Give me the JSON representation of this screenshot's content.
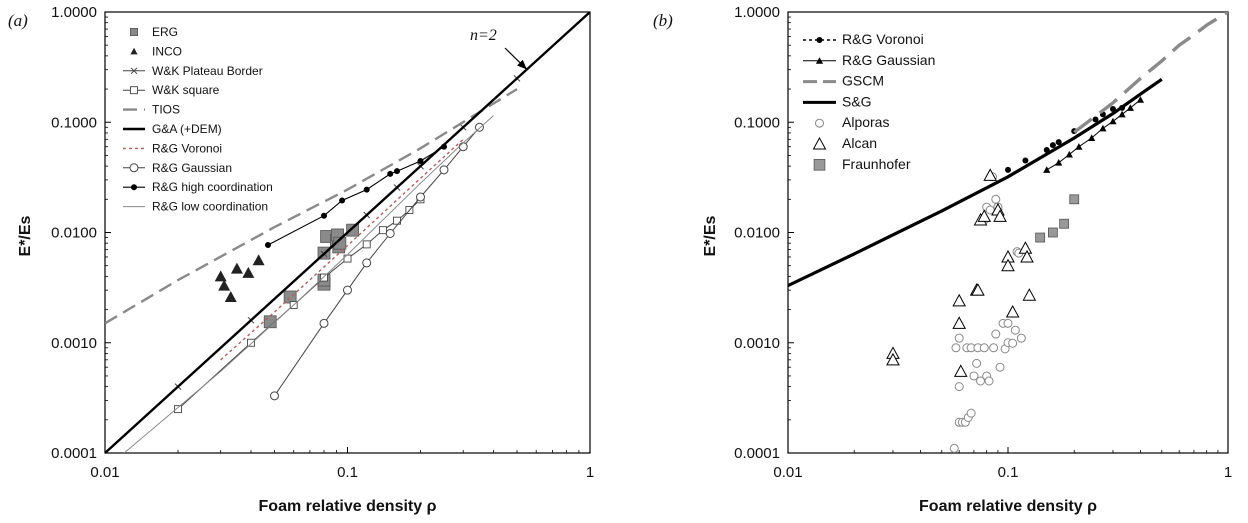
{
  "chart_data": [
    {
      "type": "line",
      "panel_label": "(a)",
      "xlabel": "Foam relative density ρ",
      "ylabel": "E*/Es",
      "xscale": "log",
      "yscale": "log",
      "xlim": [
        0.01,
        1
      ],
      "ylim": [
        0.0001,
        1
      ],
      "xticks": [
        "0.01",
        "0.1",
        "1"
      ],
      "yticks": [
        "0.0001",
        "0.0010",
        "0.0100",
        "0.1000",
        "1.0000"
      ],
      "legend_position": "top-left",
      "annotation": {
        "text": "n=2",
        "points_to": [
          0.55,
          0.3
        ]
      },
      "series": [
        {
          "name": "ERG",
          "marker": "square",
          "color": "#8a8a8a",
          "points": [
            [
              0.048,
              0.00155
            ],
            [
              0.058,
              0.0026
            ],
            [
              0.08,
              0.0034
            ],
            [
              0.08,
              0.0037
            ],
            [
              0.08,
              0.0065
            ],
            [
              0.082,
              0.0092
            ],
            [
              0.09,
              0.0085
            ],
            [
              0.091,
              0.0095
            ],
            [
              0.092,
              0.0074
            ],
            [
              0.093,
              0.008
            ],
            [
              0.105,
              0.0105
            ]
          ]
        },
        {
          "name": "INCO",
          "marker": "triangle",
          "color": "#222222",
          "points": [
            [
              0.03,
              0.004
            ],
            [
              0.031,
              0.0033
            ],
            [
              0.033,
              0.0026
            ],
            [
              0.035,
              0.0047
            ],
            [
              0.039,
              0.0043
            ],
            [
              0.043,
              0.0056
            ]
          ]
        },
        {
          "name": "W&K Plateau Border",
          "marker": "x",
          "color": "#444444",
          "points": [
            [
              0.02,
              0.0004
            ],
            [
              0.04,
              0.0016
            ],
            [
              0.08,
              0.0064
            ],
            [
              0.12,
              0.0144
            ],
            [
              0.16,
              0.0256
            ],
            [
              0.2,
              0.04
            ],
            [
              0.3,
              0.09
            ],
            [
              0.5,
              0.25
            ]
          ]
        },
        {
          "name": "W&K square",
          "marker": "open-square",
          "color": "#444444",
          "points": [
            [
              0.02,
              0.00025
            ],
            [
              0.04,
              0.001
            ],
            [
              0.06,
              0.0022
            ],
            [
              0.08,
              0.0039
            ],
            [
              0.1,
              0.0058
            ],
            [
              0.12,
              0.0078
            ],
            [
              0.14,
              0.0105
            ],
            [
              0.16,
              0.0128
            ],
            [
              0.18,
              0.016
            ],
            [
              0.2,
              0.02
            ]
          ]
        },
        {
          "name": "TIOS",
          "marker": "none",
          "color": "#8a8a8a",
          "points": [
            [
              0.01,
              0.0015
            ],
            [
              0.02,
              0.0037
            ],
            [
              0.05,
              0.0112
            ],
            [
              0.1,
              0.0245
            ],
            [
              0.2,
              0.058
            ],
            [
              0.5,
              0.2
            ]
          ]
        },
        {
          "name": "G&A (+DEM)",
          "marker": "none",
          "color": "#000000",
          "points": [
            [
              0.01,
              0.0001
            ],
            [
              1,
              1
            ]
          ]
        },
        {
          "name": "R&G Voronoi",
          "marker": "none",
          "color": "#b06060",
          "points": [
            [
              0.03,
              0.0007
            ],
            [
              0.05,
              0.0019
            ],
            [
              0.1,
              0.0076
            ],
            [
              0.2,
              0.031
            ],
            [
              0.3,
              0.07
            ]
          ]
        },
        {
          "name": "R&G Gaussian",
          "marker": "open-circle",
          "color": "#444444",
          "points": [
            [
              0.05,
              0.00033
            ],
            [
              0.08,
              0.0015
            ],
            [
              0.1,
              0.003
            ],
            [
              0.12,
              0.0053
            ],
            [
              0.15,
              0.0098
            ],
            [
              0.2,
              0.021
            ],
            [
              0.25,
              0.037
            ],
            [
              0.3,
              0.06
            ],
            [
              0.35,
              0.09
            ]
          ]
        },
        {
          "name": "R&G high coordination",
          "marker": "dot",
          "color": "#000000",
          "points": [
            [
              0.047,
              0.0077
            ],
            [
              0.08,
              0.0142
            ],
            [
              0.095,
              0.0195
            ],
            [
              0.12,
              0.0245
            ],
            [
              0.15,
              0.034
            ],
            [
              0.16,
              0.036
            ],
            [
              0.2,
              0.0445
            ],
            [
              0.25,
              0.06
            ]
          ]
        },
        {
          "name": "R&G low coordination",
          "marker": "none",
          "color": "#888888",
          "points": [
            [
              0.012,
              0.0001
            ],
            [
              0.03,
              0.00055
            ],
            [
              0.06,
              0.0022
            ],
            [
              0.1,
              0.0063
            ],
            [
              0.2,
              0.028
            ],
            [
              0.3,
              0.065
            ],
            [
              0.4,
              0.115
            ]
          ]
        }
      ]
    },
    {
      "type": "scatter",
      "panel_label": "(b)",
      "xlabel": "Foam relative density ρ",
      "ylabel": "E*/Es",
      "xscale": "log",
      "yscale": "log",
      "xlim": [
        0.01,
        1
      ],
      "ylim": [
        0.0001,
        1
      ],
      "xticks": [
        "0.01",
        "0.1",
        "1"
      ],
      "yticks": [
        "0.0001",
        "0.0010",
        "0.0100",
        "0.1000",
        "1.0000"
      ],
      "legend_position": "top-left",
      "series": [
        {
          "name": "R&G Voronoi",
          "marker": "dot",
          "color": "#000000",
          "points": [
            [
              0.1,
              0.037
            ],
            [
              0.12,
              0.045
            ],
            [
              0.15,
              0.056
            ],
            [
              0.16,
              0.062
            ],
            [
              0.17,
              0.066
            ],
            [
              0.2,
              0.083
            ],
            [
              0.25,
              0.106
            ],
            [
              0.27,
              0.118
            ],
            [
              0.3,
              0.132
            ],
            [
              0.33,
              0.135
            ]
          ]
        },
        {
          "name": "R&G Gaussian",
          "marker": "triangle",
          "color": "#000000",
          "points": [
            [
              0.15,
              0.037
            ],
            [
              0.17,
              0.043
            ],
            [
              0.19,
              0.051
            ],
            [
              0.21,
              0.06
            ],
            [
              0.24,
              0.072
            ],
            [
              0.27,
              0.088
            ],
            [
              0.3,
              0.102
            ],
            [
              0.33,
              0.118
            ],
            [
              0.36,
              0.135
            ],
            [
              0.4,
              0.16
            ]
          ]
        },
        {
          "name": "GSCM",
          "marker": "none",
          "color": "#8a8a8a",
          "points": [
            [
              0.2,
              0.081
            ],
            [
              0.3,
              0.15
            ],
            [
              0.4,
              0.25
            ],
            [
              0.5,
              0.36
            ],
            [
              0.6,
              0.5
            ],
            [
              0.7,
              0.62
            ],
            [
              0.8,
              0.76
            ],
            [
              1.0,
              1.0
            ]
          ]
        },
        {
          "name": "S&G",
          "marker": "none",
          "color": "#000000",
          "points": [
            [
              0.01,
              0.0033
            ],
            [
              0.02,
              0.0064
            ],
            [
              0.05,
              0.0157
            ],
            [
              0.1,
              0.032
            ],
            [
              0.2,
              0.072
            ],
            [
              0.3,
              0.12
            ],
            [
              0.4,
              0.18
            ],
            [
              0.5,
              0.245
            ]
          ]
        },
        {
          "name": "Alporas",
          "marker": "open-circle",
          "color": "#888888",
          "points": [
            [
              0.057,
              0.00011
            ],
            [
              0.058,
              0.0009
            ],
            [
              0.06,
              0.0011
            ],
            [
              0.06,
              0.0004
            ],
            [
              0.06,
              0.00019
            ],
            [
              0.062,
              0.00019
            ],
            [
              0.064,
              0.00019
            ],
            [
              0.065,
              0.0009
            ],
            [
              0.066,
              0.00021
            ],
            [
              0.068,
              0.00023
            ],
            [
              0.068,
              0.0009
            ],
            [
              0.07,
              0.0005
            ],
            [
              0.072,
              0.00065
            ],
            [
              0.073,
              0.0009
            ],
            [
              0.075,
              0.00045
            ],
            [
              0.078,
              0.0009
            ],
            [
              0.08,
              0.0005
            ],
            [
              0.082,
              0.00045
            ],
            [
              0.085,
              0.032
            ],
            [
              0.086,
              0.0009
            ],
            [
              0.088,
              0.0012
            ],
            [
              0.09,
              0.016
            ],
            [
              0.09,
              0.017
            ],
            [
              0.092,
              0.0006
            ],
            [
              0.095,
              0.0015
            ],
            [
              0.097,
              0.00088
            ],
            [
              0.1,
              0.0015
            ],
            [
              0.1,
              0.001
            ],
            [
              0.105,
              0.00099
            ],
            [
              0.108,
              0.0013
            ],
            [
              0.11,
              0.0067
            ],
            [
              0.112,
              0.0065
            ],
            [
              0.115,
              0.0011
            ],
            [
              0.08,
              0.017
            ],
            [
              0.083,
              0.016
            ],
            [
              0.088,
              0.02
            ],
            [
              0.078,
              0.013
            ]
          ]
        },
        {
          "name": "Alcan",
          "marker": "open-triangle",
          "color": "#000000",
          "points": [
            [
              0.03,
              0.0008
            ],
            [
              0.03,
              0.0007
            ],
            [
              0.06,
              0.0024
            ],
            [
              0.06,
              0.0015
            ],
            [
              0.061,
              0.00055
            ],
            [
              0.072,
              0.003
            ],
            [
              0.073,
              0.003
            ],
            [
              0.075,
              0.013
            ],
            [
              0.078,
              0.014
            ],
            [
              0.083,
              0.033
            ],
            [
              0.09,
              0.016
            ],
            [
              0.092,
              0.014
            ],
            [
              0.1,
              0.006
            ],
            [
              0.1,
              0.005
            ],
            [
              0.105,
              0.0019
            ],
            [
              0.12,
              0.0072
            ],
            [
              0.122,
              0.006
            ],
            [
              0.125,
              0.0027
            ]
          ]
        },
        {
          "name": "Fraunhofer",
          "marker": "square",
          "color": "#999999",
          "points": [
            [
              0.14,
              0.009
            ],
            [
              0.16,
              0.01
            ],
            [
              0.18,
              0.012
            ],
            [
              0.2,
              0.02
            ]
          ]
        }
      ]
    }
  ]
}
